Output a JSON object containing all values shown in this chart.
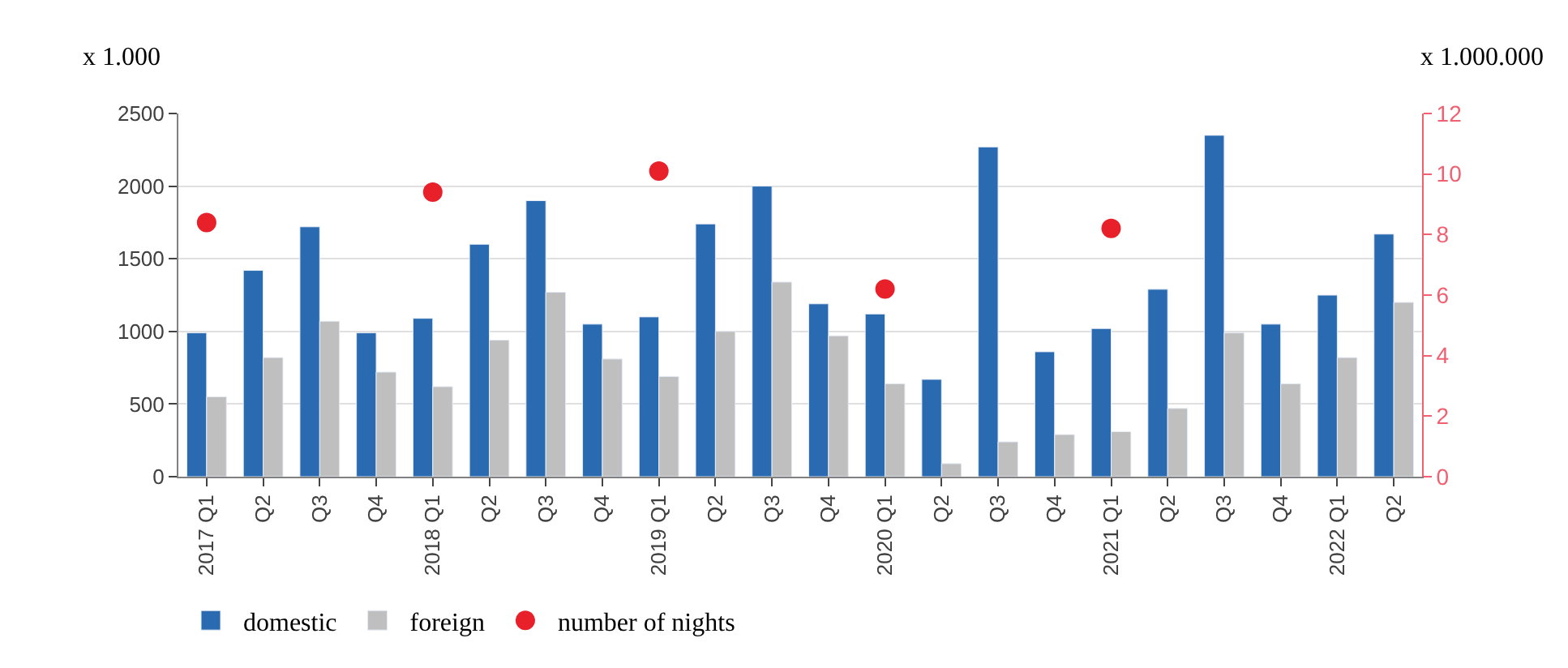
{
  "chart_data": {
    "type": "bar",
    "ylabel": "x 1.000",
    "y2label": "x 1.000.000",
    "categories": [
      "2017 Q1",
      "Q2",
      "Q3",
      "Q4",
      "2018 Q1",
      "Q2",
      "Q3",
      "Q4",
      "2019 Q1",
      "Q2",
      "Q3",
      "Q4",
      "2020 Q1",
      "Q2",
      "Q3",
      "Q4",
      "2021 Q1",
      "Q2",
      "Q3",
      "Q4",
      "2022 Q1",
      "Q2"
    ],
    "series": [
      {
        "name": "domestic",
        "color": "#2a6ab0",
        "values": [
          990,
          1420,
          1720,
          990,
          1090,
          1600,
          1900,
          1050,
          1100,
          1740,
          2000,
          1190,
          1120,
          670,
          2270,
          860,
          1020,
          1290,
          2350,
          1050,
          1250,
          1670
        ]
      },
      {
        "name": "foreign",
        "color": "#bfbfbf",
        "values": [
          550,
          820,
          1070,
          720,
          620,
          940,
          1270,
          810,
          690,
          1000,
          1340,
          970,
          640,
          90,
          240,
          290,
          310,
          470,
          990,
          640,
          820,
          1200
        ]
      },
      {
        "name": "number of nights",
        "type": "scatter",
        "axis": "y2",
        "marker": "circle",
        "color": "#e8202a",
        "values": [
          8.4,
          null,
          null,
          null,
          9.4,
          null,
          null,
          null,
          10.1,
          null,
          null,
          null,
          6.2,
          null,
          null,
          null,
          8.2,
          null,
          null,
          null,
          null,
          null
        ]
      }
    ],
    "ylim": [
      0,
      2500
    ],
    "yticks": [
      0,
      500,
      1000,
      1500,
      2000,
      2500
    ],
    "y2lim": [
      0,
      12
    ],
    "y2ticks": [
      0,
      2,
      4,
      6,
      8,
      10,
      12
    ],
    "grid": "y",
    "legend": "bottom"
  }
}
